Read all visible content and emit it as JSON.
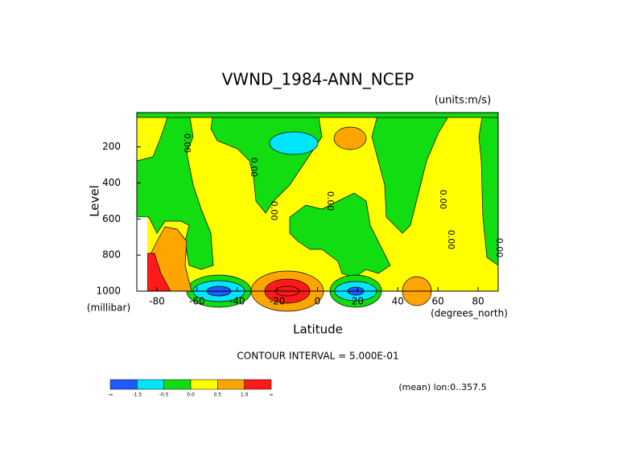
{
  "chart_data": {
    "type": "contour",
    "title": "VWND_1984-ANN_NCEP",
    "units": "(units:m/s)",
    "x_label": "Latitude",
    "x_units": "(degrees_north)",
    "y_label": "Level",
    "y_units": "(millibar)",
    "xlim": [
      -90,
      90
    ],
    "xticks": [
      -80,
      -60,
      -40,
      -20,
      0,
      20,
      40,
      60,
      80
    ],
    "ylim": [
      1000,
      10
    ],
    "yticks": [
      200,
      400,
      600,
      800,
      1000
    ],
    "contour_interval": "CONTOUR INTERVAL = 5.000E-01",
    "contour_labels": [
      "0.00",
      "0.00",
      "0.00",
      "0.00",
      "0.00",
      "0.00",
      "0.00",
      "0.00"
    ],
    "note": "(mean) lon:0..357.5",
    "colorbar": {
      "colors": [
        "#1e5aff",
        "#00e6ff",
        "#11dd11",
        "#ffff00",
        "#ffa500",
        "#ff1a1a"
      ],
      "labels": [
        "-∞",
        -1.5,
        -0.5,
        {
          "value": 0,
          "label": "0.0"
        },
        0.5,
        {
          "value": 1,
          "label": "1.0"
        },
        "∞"
      ]
    }
  }
}
